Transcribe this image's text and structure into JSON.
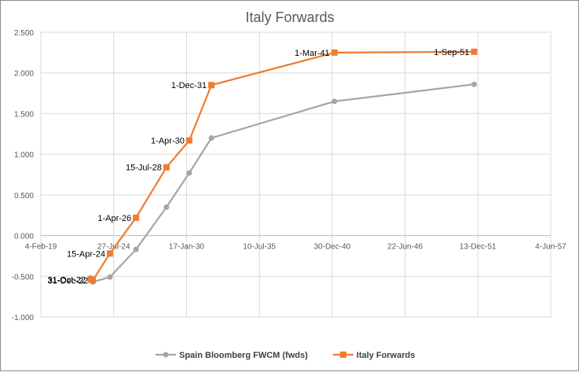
{
  "chart_data": {
    "type": "line",
    "title": "Italy Forwards",
    "xlabel": "",
    "ylabel": "",
    "grid": true,
    "legend_position": "bottom",
    "xlim": [
      "2019-02-04",
      "2057-06-04"
    ],
    "ylim": [
      -1.0,
      2.5
    ],
    "x_ticks": [
      "4-Feb-19",
      "27-Jul-24",
      "17-Jan-30",
      "10-Jul-35",
      "30-Dec-40",
      "22-Jun-46",
      "13-Dec-51",
      "4-Jun-57"
    ],
    "x_tick_dates": [
      "2019-02-04",
      "2024-07-27",
      "2030-01-17",
      "2035-07-10",
      "2040-12-30",
      "2046-06-22",
      "2051-12-13",
      "2057-06-04"
    ],
    "y_ticks": [
      "2.500",
      "2.000",
      "1.500",
      "1.000",
      "0.500",
      "0.000",
      "-0.500",
      "-1.000"
    ],
    "y_tick_values": [
      2.5,
      2.0,
      1.5,
      1.0,
      0.5,
      0.0,
      -0.5,
      -1.0
    ],
    "series": [
      {
        "name": "Spain Bloomberg FWCM (fwds)",
        "color": "#a5a5a5",
        "marker": "circle",
        "points": [
          {
            "x": "2022-10-31",
            "y": -0.52
          },
          {
            "x": "2022-12-31",
            "y": -0.57
          },
          {
            "x": "2024-04-15",
            "y": -0.51
          },
          {
            "x": "2026-04-01",
            "y": -0.17
          },
          {
            "x": "2028-07-15",
            "y": 0.35
          },
          {
            "x": "2030-04-01",
            "y": 0.77
          },
          {
            "x": "2031-12-01",
            "y": 1.2
          },
          {
            "x": "2041-03-01",
            "y": 1.65
          },
          {
            "x": "2051-09-01",
            "y": 1.86
          }
        ]
      },
      {
        "name": "Italy Forwards",
        "color": "#ed7d31",
        "marker": "square",
        "points": [
          {
            "x": "2022-10-31",
            "y": -0.54,
            "label": "31-Oct-22"
          },
          {
            "x": "2022-12-31",
            "y": -0.55,
            "label": "31-Dec-22"
          },
          {
            "x": "2024-04-15",
            "y": -0.22,
            "label": "15-Apr-24"
          },
          {
            "x": "2026-04-01",
            "y": 0.22,
            "label": "1-Apr-26"
          },
          {
            "x": "2028-07-15",
            "y": 0.84,
            "label": "15-Jul-28"
          },
          {
            "x": "2030-04-01",
            "y": 1.17,
            "label": "1-Apr-30"
          },
          {
            "x": "2031-12-01",
            "y": 1.85,
            "label": "1-Dec-31"
          },
          {
            "x": "2041-03-01",
            "y": 2.25,
            "label": "1-Mar-41"
          },
          {
            "x": "2051-09-01",
            "y": 2.26,
            "label": "1-Sep-51"
          }
        ]
      }
    ]
  }
}
